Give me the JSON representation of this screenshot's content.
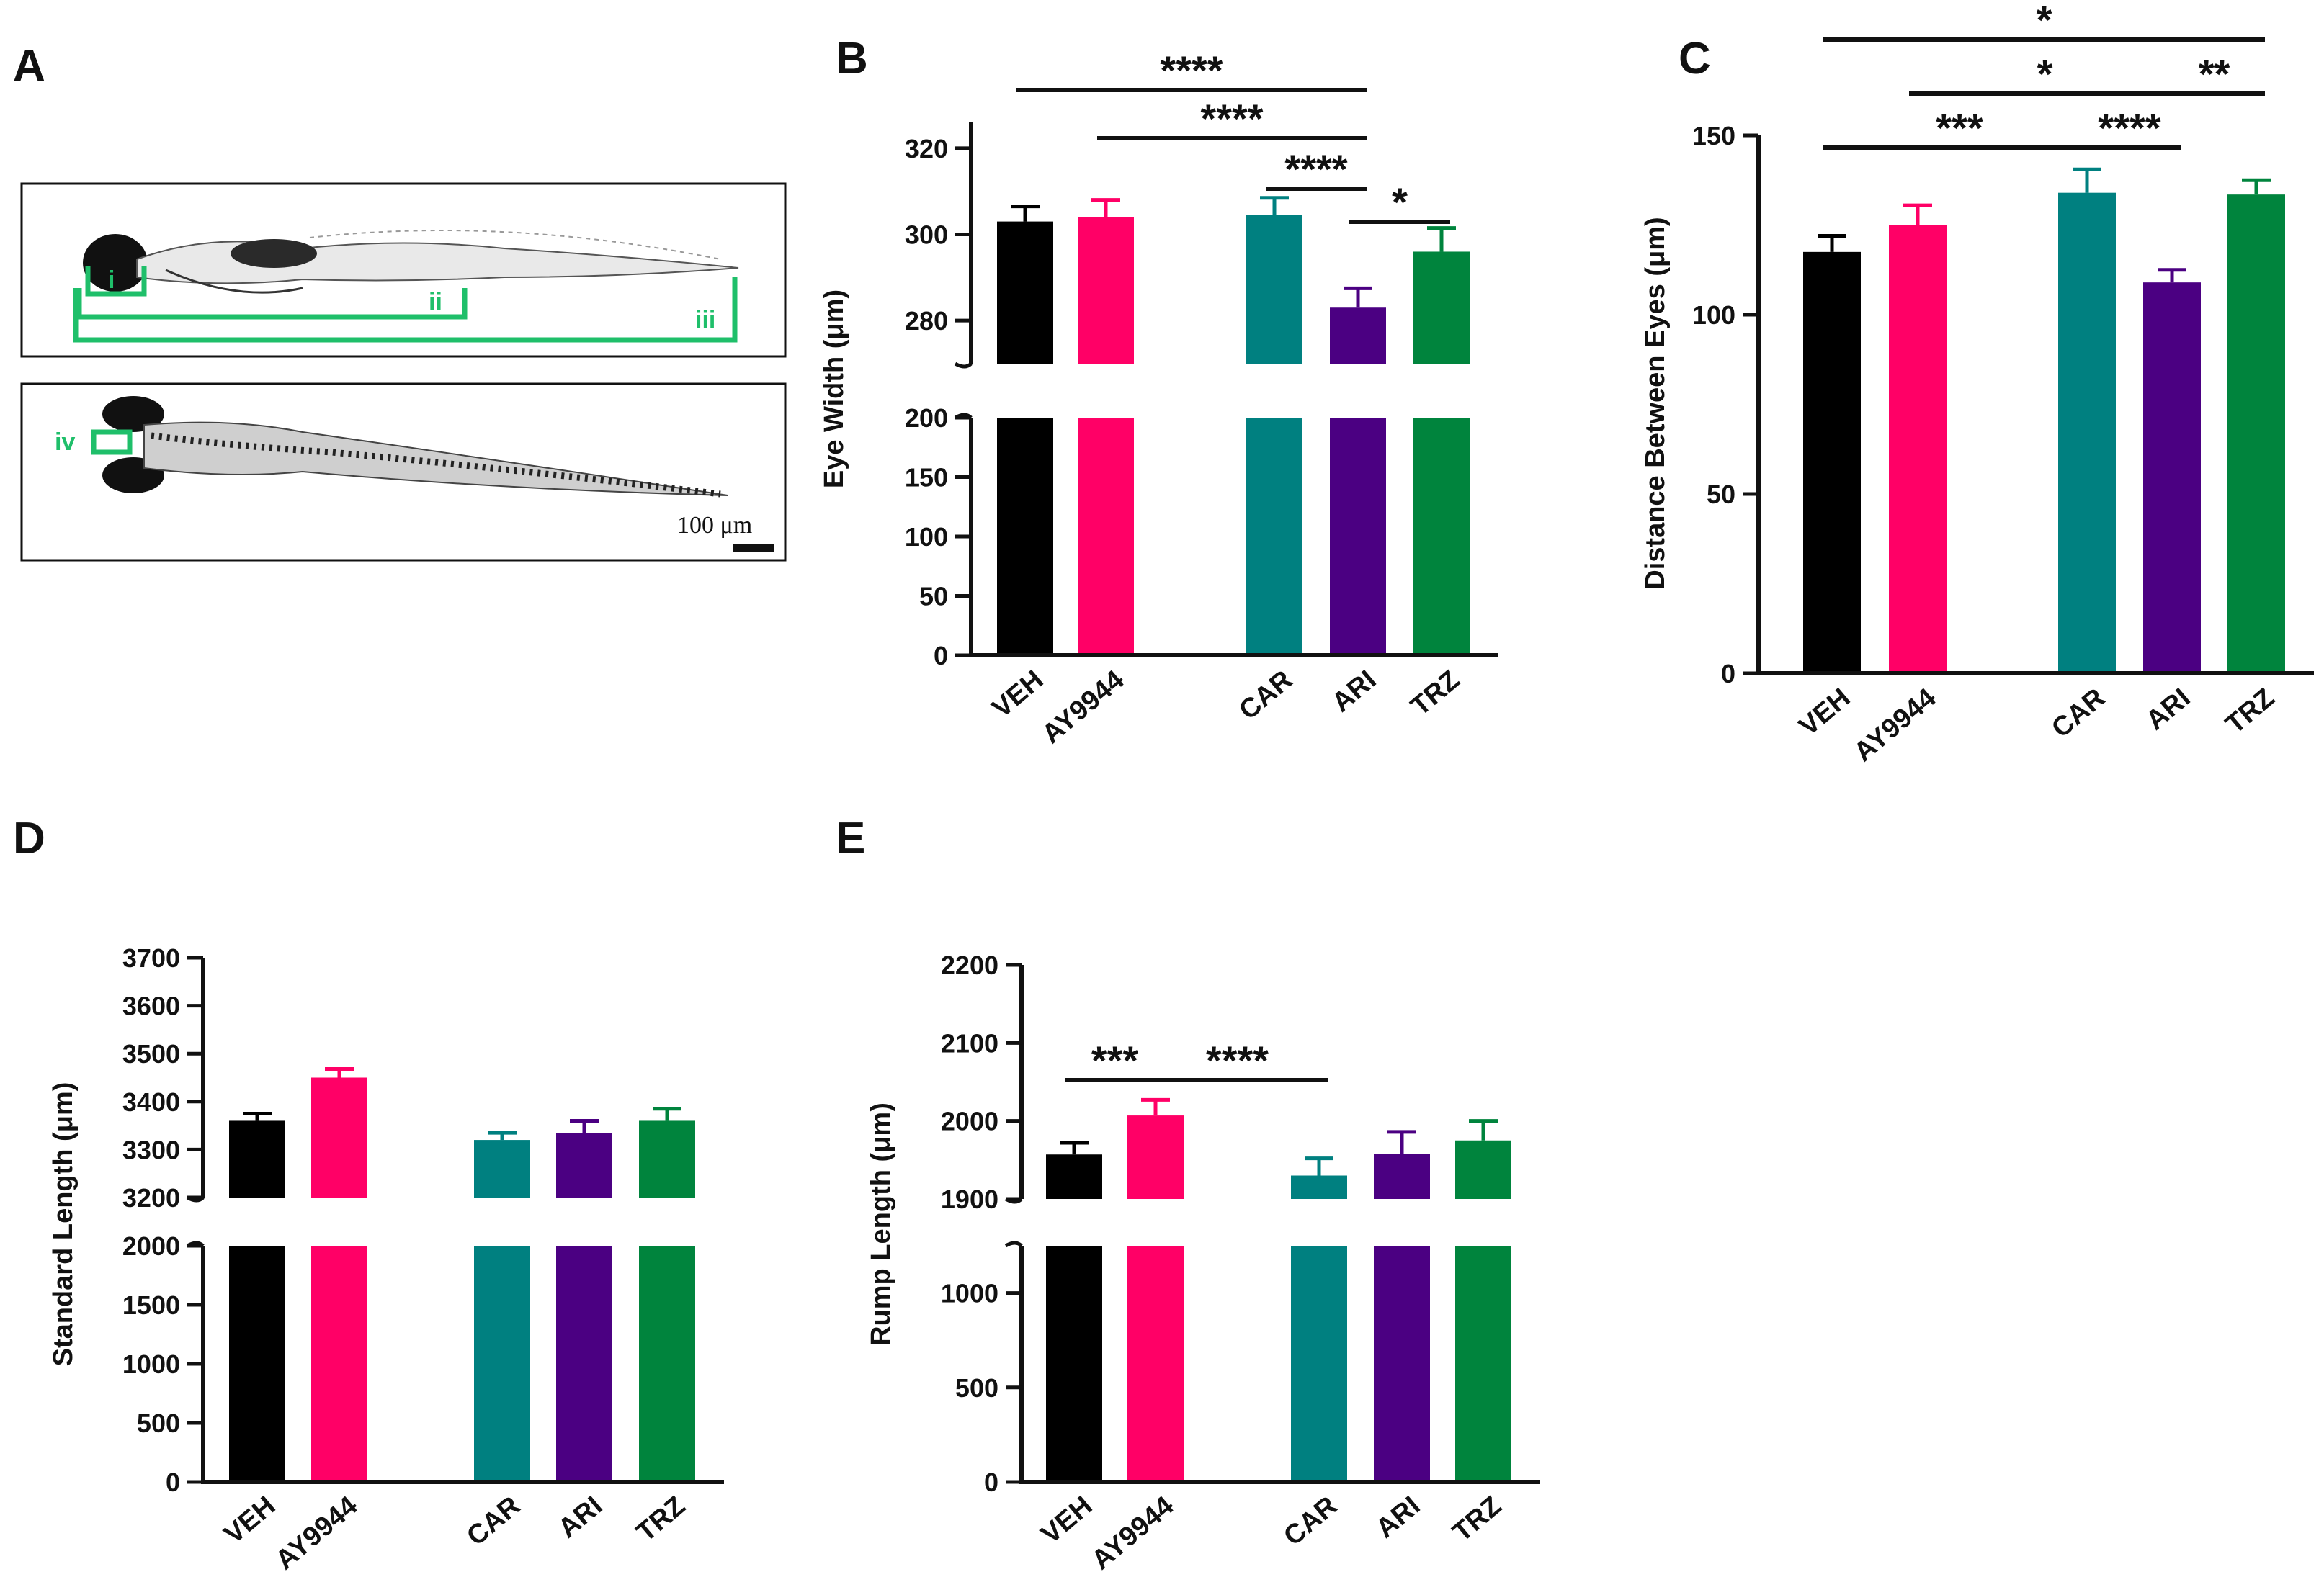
{
  "colors": {
    "VEH": "#000000",
    "AY9944": "#ff0066",
    "CAR": "#008080",
    "ARI": "#4b0082",
    "TRZ": "#00843d",
    "bracket": "#1fbf6a"
  },
  "panel_a": {
    "label": "A",
    "annotations": [
      "i",
      "ii",
      "iii",
      "iv"
    ],
    "scale_bar": "100 μm"
  },
  "chart_data": [
    {
      "panel": "B",
      "type": "bar",
      "broken_axis": true,
      "categories": [
        "VEH",
        "AY9944",
        "CAR",
        "ARI",
        "TRZ"
      ],
      "values": [
        303,
        304,
        304.5,
        283,
        296
      ],
      "errors": [
        3.5,
        4,
        4,
        4.5,
        5.5
      ],
      "ylabel": "Eye Width (μm)",
      "lower_range": [
        0,
        200
      ],
      "lower_ticks": [
        0,
        50,
        100,
        150,
        200
      ],
      "upper_range": [
        270,
        326
      ],
      "upper_ticks": [
        280,
        300,
        320
      ],
      "significance": [
        {
          "from": "VEH",
          "to": "ARI",
          "label": "****"
        },
        {
          "from": "AY9944",
          "to": "ARI",
          "label": "****"
        },
        {
          "from": "CAR",
          "to": "ARI",
          "label": "****"
        },
        {
          "from": "ARI",
          "to": "TRZ",
          "label": "*"
        }
      ]
    },
    {
      "panel": "C",
      "type": "bar",
      "broken_axis": false,
      "categories": [
        "VEH",
        "AY9944",
        "CAR",
        "ARI",
        "TRZ"
      ],
      "values": [
        117.5,
        125,
        134,
        109,
        133.5
      ],
      "errors": [
        4.5,
        5.5,
        6.5,
        3.5,
        4
      ],
      "ylabel": "Distance Between Eyes (μm)",
      "range": [
        0,
        150
      ],
      "ticks": [
        0,
        50,
        100,
        150
      ],
      "significance": [
        {
          "from": "VEH",
          "to": "TRZ",
          "label": "*"
        },
        {
          "from": "AY9944",
          "to": "ARI",
          "label": "*"
        },
        {
          "from": "ARI",
          "to": "TRZ",
          "label": "**"
        },
        {
          "from": "VEH",
          "to": "CAR",
          "label": "***"
        },
        {
          "from": "CAR",
          "to": "ARI",
          "label": "****"
        }
      ]
    },
    {
      "panel": "D",
      "type": "bar",
      "broken_axis": true,
      "categories": [
        "VEH",
        "AY9944",
        "CAR",
        "ARI",
        "TRZ"
      ],
      "values": [
        3360,
        3450,
        3320,
        3335,
        3360
      ],
      "errors": [
        15,
        18,
        15,
        25,
        25
      ],
      "ylabel": "Standard Length (μm)",
      "lower_range": [
        0,
        2000
      ],
      "lower_ticks": [
        0,
        500,
        1000,
        1500,
        2000
      ],
      "upper_range": [
        3200,
        3700
      ],
      "upper_ticks": [
        3200,
        3300,
        3400,
        3500,
        3600,
        3700
      ],
      "significance": []
    },
    {
      "panel": "E",
      "type": "bar",
      "broken_axis": true,
      "categories": [
        "VEH",
        "AY9944",
        "CAR",
        "ARI",
        "TRZ"
      ],
      "values": [
        1957,
        2007,
        1930,
        1958,
        1975
      ],
      "errors": [
        15,
        20,
        22,
        28,
        25
      ],
      "ylabel": "Rump Length (μm)",
      "lower_range": [
        0,
        1250
      ],
      "lower_ticks": [
        0,
        500,
        1000
      ],
      "upper_range": [
        1900,
        2200
      ],
      "upper_ticks": [
        1900,
        2000,
        2100,
        2200
      ],
      "significance": [
        {
          "from": "VEH",
          "to": "AY9944",
          "label": "***"
        },
        {
          "from": "AY9944",
          "to": "CAR",
          "label": "****"
        }
      ]
    }
  ]
}
